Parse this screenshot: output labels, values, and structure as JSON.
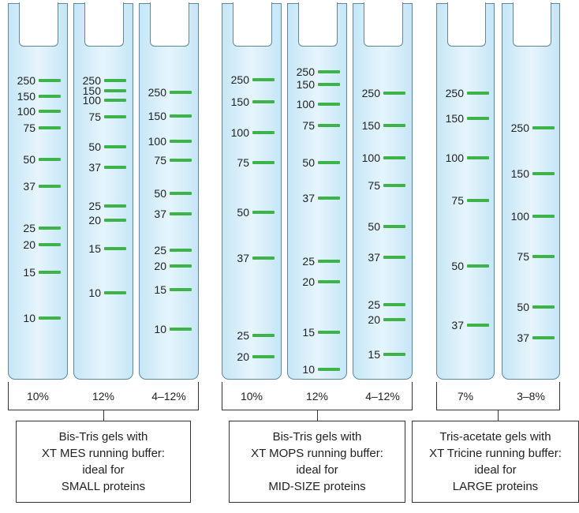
{
  "groups": [
    {
      "lanes": [
        {
          "percent": "10%",
          "markers": [
            {
              "kDa": "250",
              "position": 0.203
            },
            {
              "kDa": "150",
              "position": 0.245
            },
            {
              "kDa": "100",
              "position": 0.285
            },
            {
              "kDa": "75",
              "position": 0.33
            },
            {
              "kDa": "50",
              "position": 0.414
            },
            {
              "kDa": "37",
              "position": 0.484
            },
            {
              "kDa": "25",
              "position": 0.595
            },
            {
              "kDa": "20",
              "position": 0.639
            },
            {
              "kDa": "15",
              "position": 0.712
            },
            {
              "kDa": "10",
              "position": 0.834
            }
          ]
        },
        {
          "percent": "12%",
          "markers": [
            {
              "kDa": "250",
              "position": 0.203
            },
            {
              "kDa": "150",
              "position": 0.23
            },
            {
              "kDa": "100",
              "position": 0.255
            },
            {
              "kDa": "75",
              "position": 0.3
            },
            {
              "kDa": "50",
              "position": 0.379
            },
            {
              "kDa": "37",
              "position": 0.434
            },
            {
              "kDa": "25",
              "position": 0.536
            },
            {
              "kDa": "20",
              "position": 0.575
            },
            {
              "kDa": "15",
              "position": 0.649
            },
            {
              "kDa": "10",
              "position": 0.768
            }
          ]
        },
        {
          "percent": "4–12%",
          "markers": [
            {
              "kDa": "250",
              "position": 0.235
            },
            {
              "kDa": "150",
              "position": 0.298
            },
            {
              "kDa": "100",
              "position": 0.365
            },
            {
              "kDa": "75",
              "position": 0.415
            },
            {
              "kDa": "50",
              "position": 0.503
            },
            {
              "kDa": "37",
              "position": 0.558
            },
            {
              "kDa": "25",
              "position": 0.655
            },
            {
              "kDa": "20",
              "position": 0.695
            },
            {
              "kDa": "15",
              "position": 0.759
            },
            {
              "kDa": "10",
              "position": 0.863
            }
          ]
        }
      ],
      "description": [
        "Bis-Tris gels with",
        "XT MES running buffer:",
        "ideal for",
        "SMALL proteins"
      ]
    },
    {
      "lanes": [
        {
          "percent": "10%",
          "markers": [
            {
              "kDa": "250",
              "position": 0.201
            },
            {
              "kDa": "150",
              "position": 0.26
            },
            {
              "kDa": "100",
              "position": 0.342
            },
            {
              "kDa": "75",
              "position": 0.421
            },
            {
              "kDa": "50",
              "position": 0.553
            },
            {
              "kDa": "37",
              "position": 0.676
            },
            {
              "kDa": "25",
              "position": 0.881
            },
            {
              "kDa": "20",
              "position": 0.937
            }
          ]
        },
        {
          "percent": "12%",
          "markers": [
            {
              "kDa": "250",
              "position": 0.18
            },
            {
              "kDa": "150",
              "position": 0.214
            },
            {
              "kDa": "100",
              "position": 0.266
            },
            {
              "kDa": "75",
              "position": 0.323
            },
            {
              "kDa": "50",
              "position": 0.421
            },
            {
              "kDa": "37",
              "position": 0.516
            },
            {
              "kDa": "25",
              "position": 0.684
            },
            {
              "kDa": "20",
              "position": 0.738
            },
            {
              "kDa": "15",
              "position": 0.872
            },
            {
              "kDa": "10",
              "position": 0.97
            }
          ]
        },
        {
          "percent": "4–12%",
          "markers": [
            {
              "kDa": "250",
              "position": 0.237
            },
            {
              "kDa": "150",
              "position": 0.323
            },
            {
              "kDa": "100",
              "position": 0.409
            },
            {
              "kDa": "75",
              "position": 0.482
            },
            {
              "kDa": "50",
              "position": 0.591
            },
            {
              "kDa": "37",
              "position": 0.672
            },
            {
              "kDa": "25",
              "position": 0.799
            },
            {
              "kDa": "20",
              "position": 0.839
            },
            {
              "kDa": "15",
              "position": 0.931
            }
          ]
        }
      ],
      "description": [
        "Bis-Tris gels with",
        "XT MOPS running buffer:",
        "ideal for",
        "MID-SIZE proteins"
      ]
    },
    {
      "lanes": [
        {
          "percent": "7%",
          "markers": [
            {
              "kDa": "250",
              "position": 0.237
            },
            {
              "kDa": "150",
              "position": 0.304
            },
            {
              "kDa": "100",
              "position": 0.409
            },
            {
              "kDa": "75",
              "position": 0.522
            },
            {
              "kDa": "50",
              "position": 0.697
            },
            {
              "kDa": "37",
              "position": 0.853
            }
          ]
        },
        {
          "percent": "3–8%",
          "markers": [
            {
              "kDa": "250",
              "position": 0.329
            },
            {
              "kDa": "150",
              "position": 0.451
            },
            {
              "kDa": "100",
              "position": 0.564
            },
            {
              "kDa": "75",
              "position": 0.671
            },
            {
              "kDa": "50",
              "position": 0.805
            },
            {
              "kDa": "37",
              "position": 0.887
            }
          ]
        }
      ],
      "description": [
        "Tris-acetate gels with",
        "XT Tricine running buffer:",
        "ideal for",
        "LARGE proteins"
      ]
    }
  ],
  "colors": {
    "band": "#3db34a",
    "gel": "#d6eef9",
    "gel_border": "#5f87a0"
  }
}
